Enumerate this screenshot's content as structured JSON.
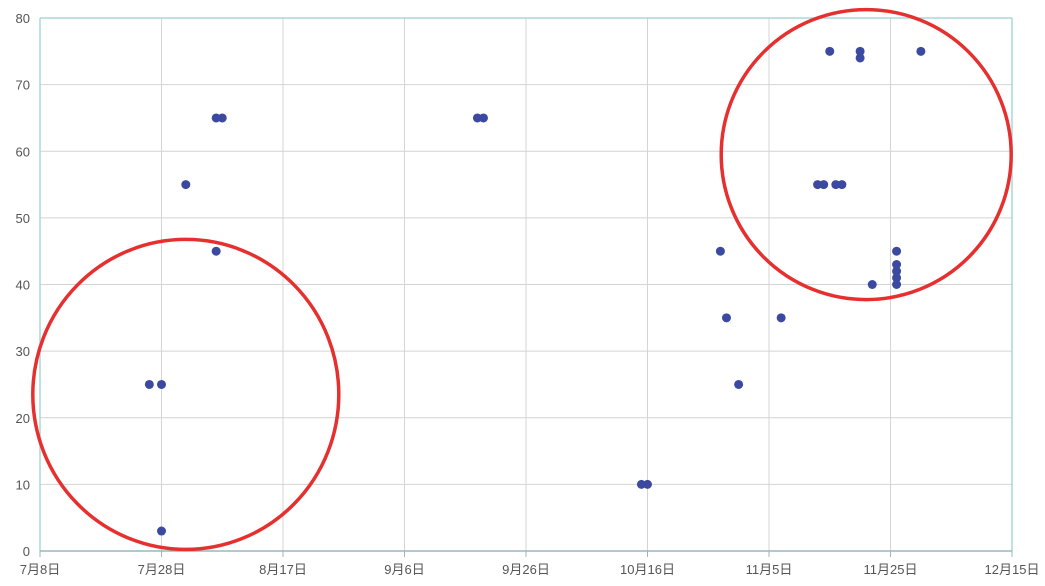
{
  "chart_data": {
    "type": "scatter",
    "title": "",
    "xlabel": "",
    "ylabel": "",
    "x_ticks": [
      "7月8日",
      "7月28日",
      "8月17日",
      "9月6日",
      "9月26日",
      "10月16日",
      "11月5日",
      "11月25日",
      "12月15日"
    ],
    "x_range": [
      "7月8日",
      "12月15日"
    ],
    "y_ticks": [
      0,
      10,
      20,
      30,
      40,
      50,
      60,
      70,
      80
    ],
    "ylim": [
      0,
      80
    ],
    "grid": true,
    "legend": "none",
    "series": [
      {
        "points": [
          {
            "x": "7月26日",
            "y": 25
          },
          {
            "x": "7月28日",
            "y": 25
          },
          {
            "x": "7月28日",
            "y": 3
          },
          {
            "x": "8月1日",
            "y": 55
          },
          {
            "x": "8月6日",
            "y": 65
          },
          {
            "x": "8月7日",
            "y": 65
          },
          {
            "x": "8月6日",
            "y": 45
          },
          {
            "x": "9月18日",
            "y": 65
          },
          {
            "x": "9月19日",
            "y": 65
          },
          {
            "x": "10月15日",
            "y": 10
          },
          {
            "x": "10月16日",
            "y": 10
          },
          {
            "x": "10月28日",
            "y": 45
          },
          {
            "x": "10月29日",
            "y": 35
          },
          {
            "x": "10月31日",
            "y": 25
          },
          {
            "x": "11月7日",
            "y": 35
          },
          {
            "x": "11月13日",
            "y": 55
          },
          {
            "x": "11月14日",
            "y": 55
          },
          {
            "x": "11月15日",
            "y": 75
          },
          {
            "x": "11月16日",
            "y": 55
          },
          {
            "x": "11月17日",
            "y": 55
          },
          {
            "x": "11月20日",
            "y": 75
          },
          {
            "x": "11月20日",
            "y": 74
          },
          {
            "x": "11月22日",
            "y": 40
          },
          {
            "x": "11月26日",
            "y": 45
          },
          {
            "x": "11月26日",
            "y": 43
          },
          {
            "x": "11月26日",
            "y": 42
          },
          {
            "x": "11月26日",
            "y": 41
          },
          {
            "x": "11月26日",
            "y": 40
          },
          {
            "x": "11月30日",
            "y": 75
          }
        ]
      }
    ],
    "annotations": [
      {
        "shape": "circle",
        "around": {
          "x": "8月1日",
          "y": 23.5
        }
      },
      {
        "shape": "circle",
        "around": {
          "x": "11月21日",
          "y": 59.5
        }
      }
    ],
    "colors": {
      "point": "#3b4aa0",
      "grid": "#d4d4d4",
      "plot_border": "#a8d8d8",
      "axis": "#9ab8b8",
      "annotation": "#e63030",
      "tick_label": "#555555"
    }
  }
}
